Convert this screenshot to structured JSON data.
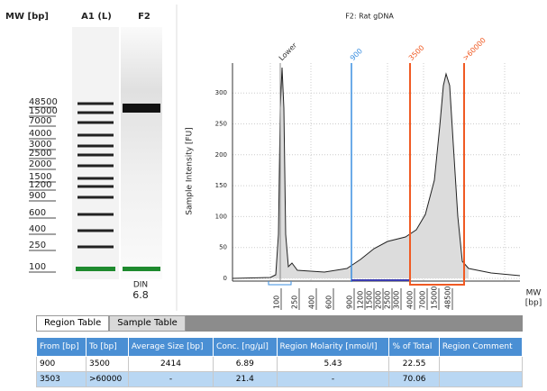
{
  "gel": {
    "headers": [
      "MW [bp]",
      "A1 (L)",
      "F2"
    ],
    "ladder": [
      "48500",
      "15000",
      "7000",
      "4000",
      "3000",
      "2500",
      "2000",
      "1500",
      "1200",
      "900",
      "600",
      "400",
      "250",
      "100"
    ],
    "din_label": "DIN",
    "din_value": "6.8"
  },
  "plot": {
    "title": "F2: Rat gDNA",
    "y_label": "Sample Intensity [FU]",
    "y_ticks": [
      "0",
      "50",
      "100",
      "150",
      "200",
      "250",
      "300"
    ],
    "x_ticks": [
      "100",
      "250",
      "400",
      "600",
      "900",
      "1200",
      "1500",
      "2000",
      "2500",
      "3000",
      "4000",
      "7000",
      "15000",
      "48500"
    ],
    "x_label": [
      "MW",
      "[bp]"
    ],
    "markers": [
      "Lower",
      "900",
      "3500",
      ">60000"
    ]
  },
  "table": {
    "tabs": [
      "Region Table",
      "Sample Table"
    ],
    "columns": [
      "From [bp]",
      "To [bp]",
      "Average Size [bp]",
      "Conc. [ng/µl]",
      "Region Molarity [nmol/l]",
      "% of Total",
      "Region Comment"
    ],
    "rows": [
      [
        "900",
        "3500",
        "2414",
        "6.89",
        "5.43",
        "22.55"
      ],
      [
        "3503",
        ">60000",
        "-",
        "21.4",
        "-",
        "70.06"
      ]
    ]
  }
}
